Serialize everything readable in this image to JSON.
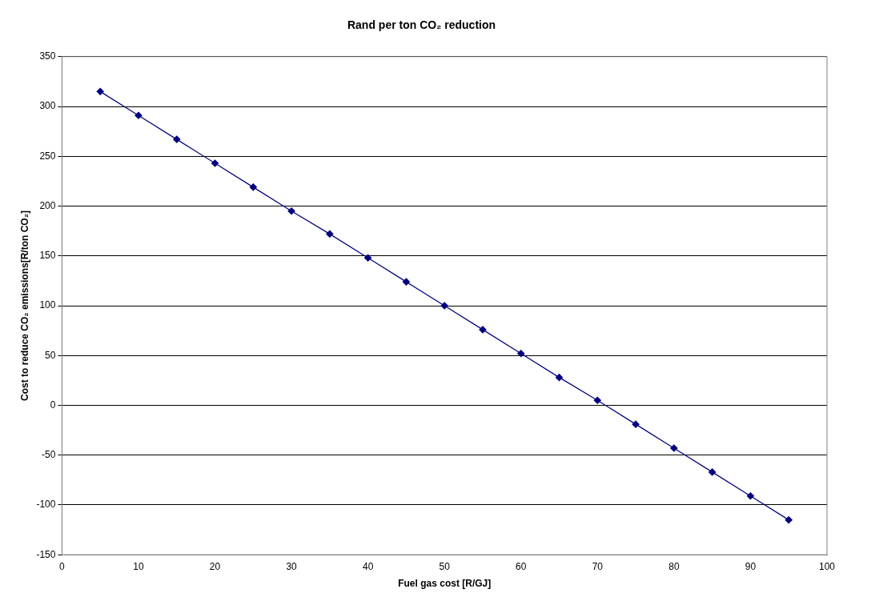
{
  "chart_data": {
    "type": "line",
    "title": "Rand per ton CO₂ reduction",
    "xlabel": "Fuel gas cost [R/GJ]",
    "ylabel": "Cost to reduce CO₂ emissions[R/ton CO₂]",
    "x": [
      5,
      10,
      15,
      20,
      25,
      30,
      35,
      40,
      45,
      50,
      55,
      60,
      65,
      70,
      75,
      80,
      85,
      90,
      95
    ],
    "series": [
      {
        "color": "#000080",
        "values": [
          315,
          291,
          267,
          243,
          219,
          195,
          172,
          148,
          124,
          100,
          76,
          52,
          28,
          5,
          -19,
          -43,
          -67,
          -91,
          -115
        ]
      }
    ],
    "xlim": [
      0,
      100
    ],
    "xticks": [
      0,
      10,
      20,
      30,
      40,
      50,
      60,
      70,
      80,
      90,
      100
    ],
    "ylim": [
      -150,
      350
    ],
    "yticks": [
      -150,
      -100,
      -50,
      0,
      50,
      100,
      150,
      200,
      250,
      300,
      350
    ],
    "grid": "y",
    "legend": false,
    "marker": "diamond",
    "line_style": "solid"
  }
}
